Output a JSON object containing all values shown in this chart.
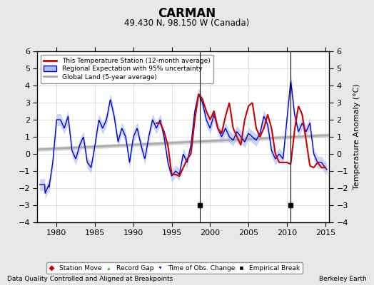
{
  "title": "CARMAN",
  "subtitle": "49.430 N, 98.150 W (Canada)",
  "xlabel_left": "Data Quality Controlled and Aligned at Breakpoints",
  "xlabel_right": "Berkeley Earth",
  "ylabel": "Temperature Anomaly (°C)",
  "xlim": [
    1977.5,
    2015.5
  ],
  "ylim": [
    -4,
    6
  ],
  "yticks": [
    -4,
    -3,
    -2,
    -1,
    0,
    1,
    2,
    3,
    4,
    5,
    6
  ],
  "xticks": [
    1980,
    1985,
    1990,
    1995,
    2000,
    2005,
    2010,
    2015
  ],
  "empirical_breaks": [
    1998.7,
    2010.5
  ],
  "blue_line_color": "#0000cc",
  "blue_fill_color": "#aabbee",
  "red_line_color": "#cc0000",
  "gray_line_color": "#aaaaaa",
  "gray_fill_color": "#cccccc",
  "background_color": "#e8e8e8",
  "plot_bg_color": "#ffffff",
  "grid_color": "#cccccc",
  "legend1_labels": [
    "This Temperature Station (12-month average)",
    "Regional Expectation with 95% uncertainty",
    "Global Land (5-year average)"
  ],
  "legend2_labels": [
    "Station Move",
    "Record Gap",
    "Time of Obs. Change",
    "Empirical Break"
  ]
}
